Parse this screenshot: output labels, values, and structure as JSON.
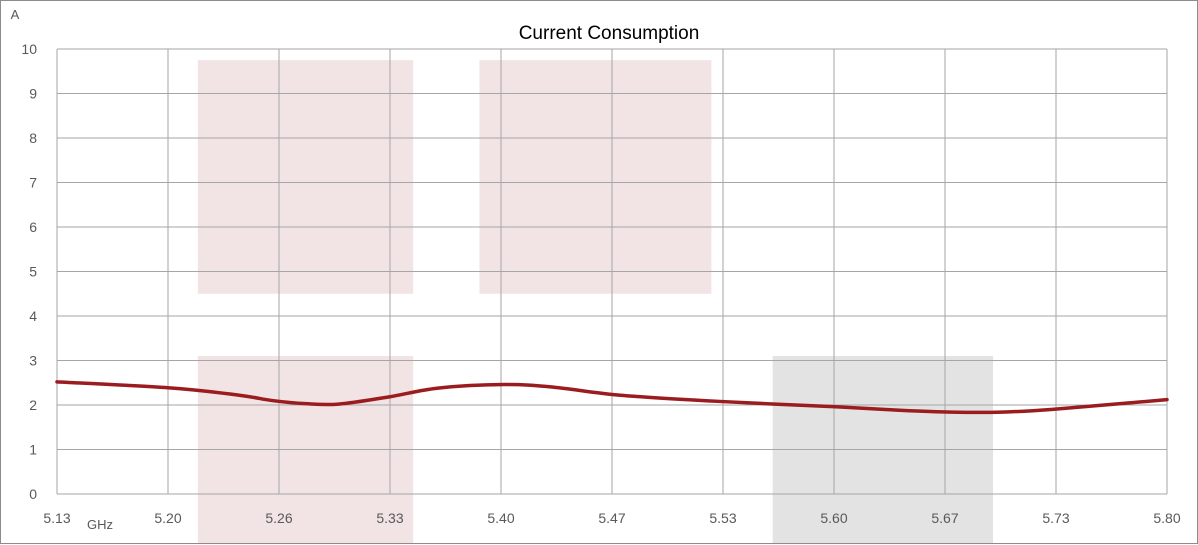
{
  "chart_data": {
    "type": "line",
    "title": "Current Consumption",
    "ylabel": "A",
    "xlabel": "GHz",
    "x_ticks": [
      "5.13",
      "5.20",
      "5.26",
      "5.33",
      "5.40",
      "5.47",
      "5.53",
      "5.60",
      "5.67",
      "5.73",
      "5.80"
    ],
    "y_ticks": [
      "0",
      "1",
      "2",
      "3",
      "4",
      "5",
      "6",
      "7",
      "8",
      "9",
      "10"
    ],
    "xlim": [
      5.13,
      5.8
    ],
    "ylim": [
      0,
      10
    ],
    "grid": true,
    "series": [
      {
        "color": "#9b1c1f",
        "x": [
          5.13,
          5.2,
          5.24,
          5.26,
          5.28,
          5.3,
          5.33,
          5.36,
          5.4,
          5.43,
          5.47,
          5.53,
          5.6,
          5.64,
          5.67,
          5.7,
          5.73,
          5.8
        ],
        "y": [
          2.52,
          2.38,
          2.22,
          2.1,
          2.03,
          2.02,
          2.18,
          2.38,
          2.46,
          2.4,
          2.22,
          2.08,
          1.96,
          1.88,
          1.84,
          1.84,
          1.9,
          2.12
        ]
      }
    ],
    "bands": [
      {
        "x0": 5.215,
        "x1": 5.345,
        "y0": 4.5,
        "y1": 9.75,
        "color": "#f2e4e4"
      },
      {
        "x0": 5.215,
        "x1": 5.345,
        "y0": -1.2,
        "y1": 3.1,
        "color": "#f2e4e4"
      },
      {
        "x0": 5.385,
        "x1": 5.525,
        "y0": 4.5,
        "y1": 9.75,
        "color": "#f2e4e4"
      },
      {
        "x0": 5.562,
        "x1": 5.695,
        "y0": -1.2,
        "y1": 3.1,
        "color": "#e3e3e3"
      }
    ],
    "colors": {
      "grid": "#a6a6a6",
      "axis": "#8c8c8c"
    }
  }
}
